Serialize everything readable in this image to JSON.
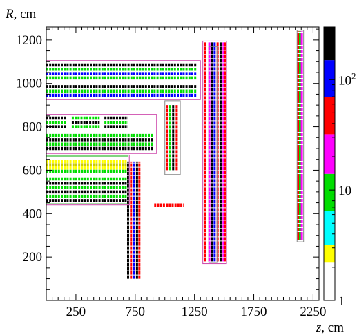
{
  "chart_data": {
    "type": "heatmap",
    "xlabel_var": "z",
    "xlabel_unit": ", cm",
    "ylabel_var": "R",
    "ylabel_unit": ", cm",
    "xlim": [
      0,
      2300
    ],
    "ylim": [
      0,
      1260
    ],
    "x_ticks": [
      "250",
      "750",
      "1250",
      "1750",
      "2250"
    ],
    "x_tick_values": [
      250,
      750,
      1250,
      1750,
      2250
    ],
    "y_ticks": [
      "200",
      "400",
      "600",
      "800",
      "1000",
      "1200"
    ],
    "y_tick_values": [
      200,
      400,
      600,
      800,
      1000,
      1200
    ],
    "colorbar": {
      "scale": "log",
      "range": [
        1,
        300
      ],
      "tick_labels": [
        {
          "base": "1",
          "exp": "",
          "value": 1
        },
        {
          "base": "10",
          "exp": "",
          "value": 10
        },
        {
          "base": "10",
          "exp": "2",
          "value": 100
        }
      ],
      "levels": [
        {
          "color": "#ffffff",
          "from": 1,
          "to": 2.2
        },
        {
          "color": "#ffff00",
          "from": 2.2,
          "to": 3.2
        },
        {
          "color": "#00ffff",
          "from": 3.2,
          "to": 6.5
        },
        {
          "color": "#00dd00",
          "from": 6.5,
          "to": 14
        },
        {
          "color": "#ff00ff",
          "from": 14,
          "to": 32
        },
        {
          "color": "#ff0000",
          "from": 32,
          "to": 70
        },
        {
          "color": "#0000ff",
          "from": 70,
          "to": 150
        },
        {
          "color": "#000000",
          "from": 150,
          "to": 300
        }
      ]
    },
    "region_outlines": [
      {
        "name": "upper-barrel",
        "z": [
          0,
          1300
        ],
        "R": [
          925,
          1105
        ],
        "color": "#cc44aa"
      },
      {
        "name": "middle-barrel",
        "z": [
          0,
          930
        ],
        "R": [
          677,
          857
        ],
        "color": "#cc44aa"
      },
      {
        "name": "lower-barrel",
        "z": [
          0,
          690
        ],
        "R": [
          445,
          665
        ],
        "color": "#00aa00"
      },
      {
        "name": "lower-barrel-frame",
        "z": [
          0,
          700
        ],
        "R": [
          440,
          670
        ],
        "color": "#cc44aa"
      },
      {
        "name": "inner-endcap-a",
        "z": [
          1000,
          1130
        ],
        "R": [
          580,
          920
        ],
        "color": "#888888"
      },
      {
        "name": "outer-endcap-a",
        "z": [
          1320,
          1520
        ],
        "R": [
          170,
          1195
        ],
        "color": "#cc44aa"
      },
      {
        "name": "outer-endcap-a-inner",
        "z": [
          1370,
          1440
        ],
        "R": [
          175,
          1170
        ],
        "color": "#888888"
      },
      {
        "name": "outer-endcap-b",
        "z": [
          2115,
          2170
        ],
        "R": [
          270,
          1245
        ],
        "color": "#888888"
      }
    ],
    "band_series": [
      {
        "name": "upper-barrel",
        "z_from": 0,
        "z_to": 1275,
        "R_levels": [
          1085,
          1065,
          1045,
          1025,
          985,
          965,
          945
        ],
        "colors": [
          "#000000",
          "#00dd00",
          "#0000ff",
          "#00dd00",
          "#000000",
          "#00dd00",
          "#0000ff"
        ]
      },
      {
        "name": "middle-barrel-top",
        "z_from": 0,
        "z_to": 170,
        "R_levels": [
          840,
          820,
          800
        ],
        "colors": [
          "#000000",
          "#00dd00",
          "#000000"
        ]
      },
      {
        "name": "middle-barrel-mid",
        "z_from": 215,
        "z_to": 450,
        "R_levels": [
          840,
          820,
          800
        ],
        "colors": [
          "#00dd00",
          "#000000",
          "#00dd00"
        ]
      },
      {
        "name": "middle-barrel-right",
        "z_from": 490,
        "z_to": 690,
        "R_levels": [
          840,
          820,
          800
        ],
        "colors": [
          "#000000",
          "#00dd00",
          "#000000"
        ]
      },
      {
        "name": "middle-barrel-low",
        "z_from": 0,
        "z_to": 900,
        "R_levels": [
          760,
          740,
          720,
          700
        ],
        "colors": [
          "#00dd00",
          "#000000",
          "#00dd00",
          "#000000"
        ]
      },
      {
        "name": "lower-barrel-top",
        "z_from": 0,
        "z_to": 680,
        "R_levels": [
          640,
          625,
          610,
          595
        ],
        "colors": [
          "#ffff00",
          "#cccc00",
          "#ffff00",
          "#00dd00"
        ]
      },
      {
        "name": "lower-barrel-low",
        "z_from": 0,
        "z_to": 680,
        "R_levels": [
          560,
          540,
          520,
          500,
          480,
          460
        ],
        "colors": [
          "#00dd00",
          "#000000",
          "#00dd00",
          "#000000",
          "#00dd00",
          "#000000"
        ]
      },
      {
        "name": "mid-strip",
        "z_from": 910,
        "z_to": 1160,
        "R_levels": [
          440
        ],
        "colors": [
          "#ff0000"
        ]
      }
    ],
    "column_series": [
      {
        "name": "inner-pillar",
        "z_values": [
          690,
          715,
          740,
          765,
          785
        ],
        "R_from": 100,
        "R_to": 640,
        "colors": [
          "#000000",
          "#ff0000",
          "#0000ff",
          "#000000",
          "#ff0000"
        ]
      },
      {
        "name": "endcap-a",
        "z_values": [
          1020,
          1045,
          1070,
          1100
        ],
        "R_from": 600,
        "R_to": 900,
        "colors": [
          "#ff0000",
          "#00dd00",
          "#000000",
          "#ff0000"
        ]
      },
      {
        "name": "endcap-b",
        "z_values": [
          1340,
          1375,
          1400,
          1420,
          1445,
          1470,
          1495,
          1510
        ],
        "R_from": 180,
        "R_to": 1190,
        "colors": [
          "#ff0000",
          "#ff00ff",
          "#000000",
          "#0000ff",
          "#ff0000",
          "#000000",
          "#ff00ff",
          "#ff0000"
        ]
      },
      {
        "name": "endcap-c",
        "z_values": [
          2125,
          2140,
          2155
        ],
        "R_from": 280,
        "R_to": 1240,
        "colors": [
          "#ff0000",
          "#00dd00",
          "#ff00ff"
        ]
      }
    ]
  }
}
